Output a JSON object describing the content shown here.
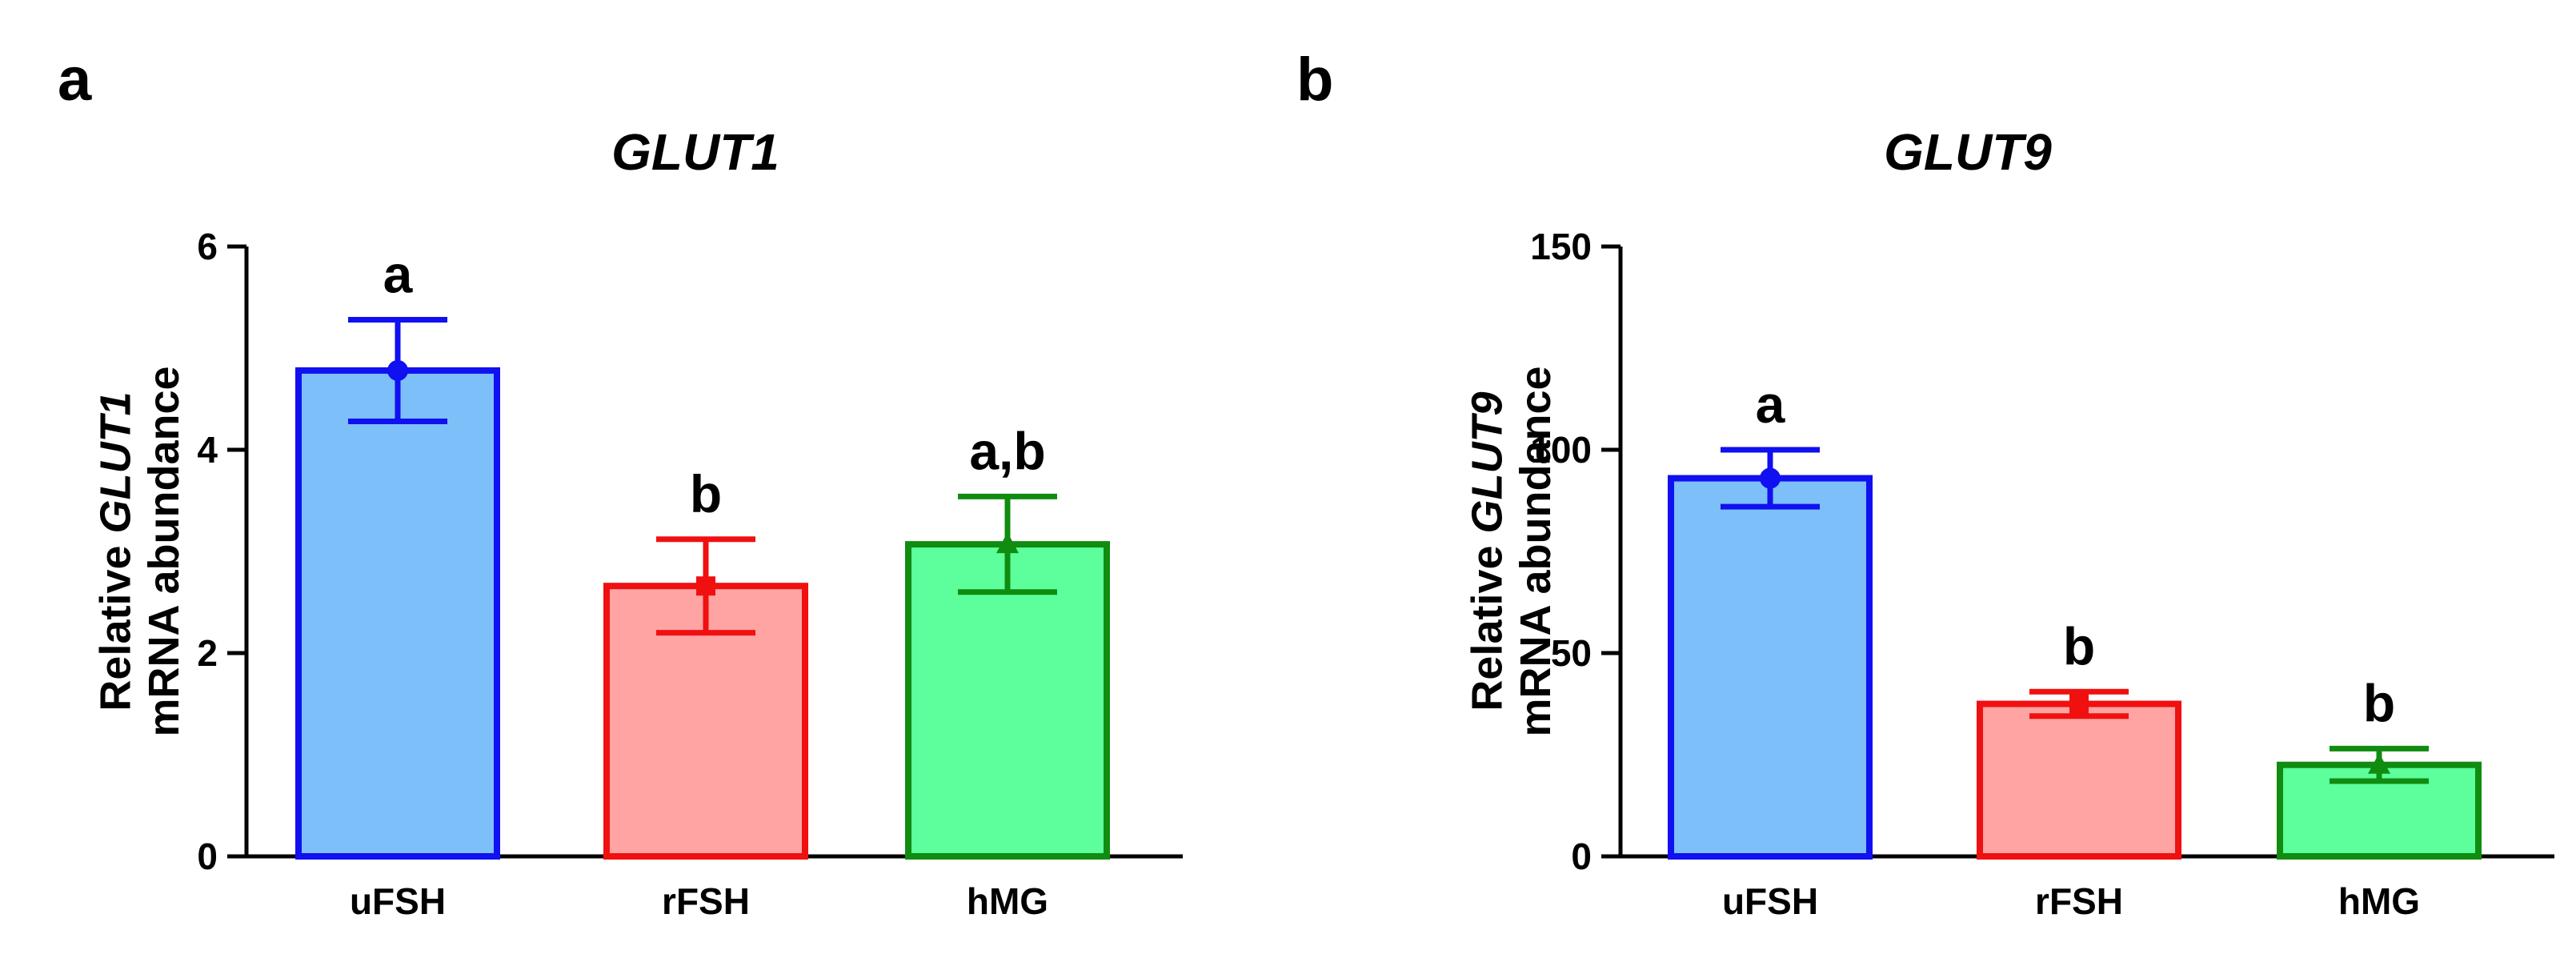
{
  "chart_data": [
    {
      "panel": "a",
      "type": "bar",
      "title": "GLUT1",
      "ylabel_line1_prefix": "Relative ",
      "ylabel_line1_gene": "GLUT1",
      "ylabel_line2": "mRNA abundance",
      "xlabel": "",
      "ylim": [
        0,
        6
      ],
      "yticks": [
        0,
        2,
        4,
        6
      ],
      "grid": false,
      "categories": [
        "uFSH",
        "rFSH",
        "hMG"
      ],
      "values": [
        4.78,
        2.66,
        3.07
      ],
      "errors": [
        0.5,
        0.46,
        0.47
      ],
      "significance": [
        "a",
        "b",
        "a,b"
      ],
      "fill_colors": [
        "#7dbff9",
        "#ffa3a3",
        "#5cff9b"
      ],
      "edge_colors": [
        "#1010f0",
        "#f01010",
        "#108c10"
      ],
      "marker_shapes": [
        "circle",
        "square",
        "triangle"
      ]
    },
    {
      "panel": "b",
      "type": "bar",
      "title": "GLUT9",
      "ylabel_line1_prefix": "Relative ",
      "ylabel_line1_gene": "GLUT9",
      "ylabel_line2": "mRNA abundance",
      "xlabel": "",
      "ylim": [
        0,
        150
      ],
      "yticks": [
        0,
        50,
        100,
        150
      ],
      "grid": false,
      "categories": [
        "uFSH",
        "rFSH",
        "hMG"
      ],
      "values": [
        93,
        37.5,
        22.5
      ],
      "errors": [
        7,
        3,
        4
      ],
      "significance": [
        "a",
        "b",
        "b"
      ],
      "fill_colors": [
        "#7dbff9",
        "#ffa3a3",
        "#5cff9b"
      ],
      "edge_colors": [
        "#1010f0",
        "#f01010",
        "#108c10"
      ],
      "marker_shapes": [
        "circle",
        "square",
        "triangle"
      ]
    }
  ]
}
